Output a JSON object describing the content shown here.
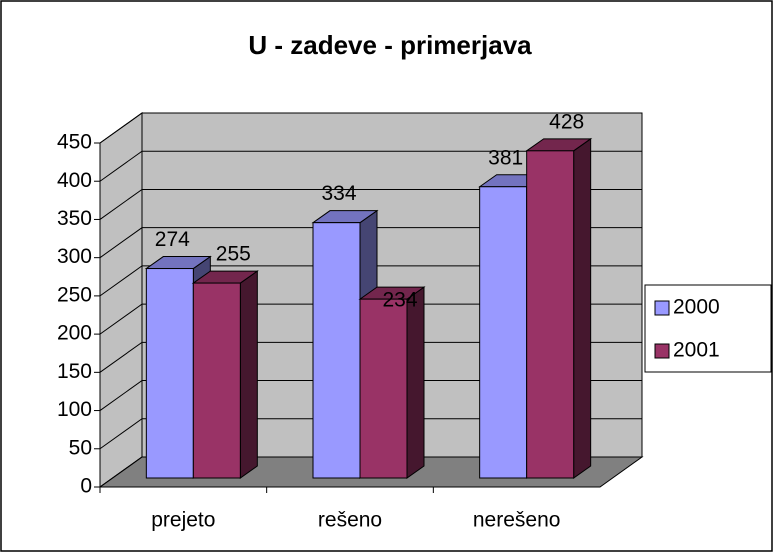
{
  "chart_data": {
    "type": "bar3d",
    "title": "U - zadeve - primerjava",
    "categories": [
      "prejeto",
      "rešeno",
      "nerešeno"
    ],
    "series": [
      {
        "name": "2000",
        "color": "#9999ff",
        "values": [
          274,
          334,
          381
        ]
      },
      {
        "name": "2001",
        "color": "#993366",
        "values": [
          255,
          234,
          428
        ]
      }
    ],
    "ylim": [
      0,
      450
    ],
    "yticks": [
      0,
      50,
      100,
      150,
      200,
      250,
      300,
      350,
      400,
      450
    ],
    "grid": true,
    "legend": "right"
  }
}
